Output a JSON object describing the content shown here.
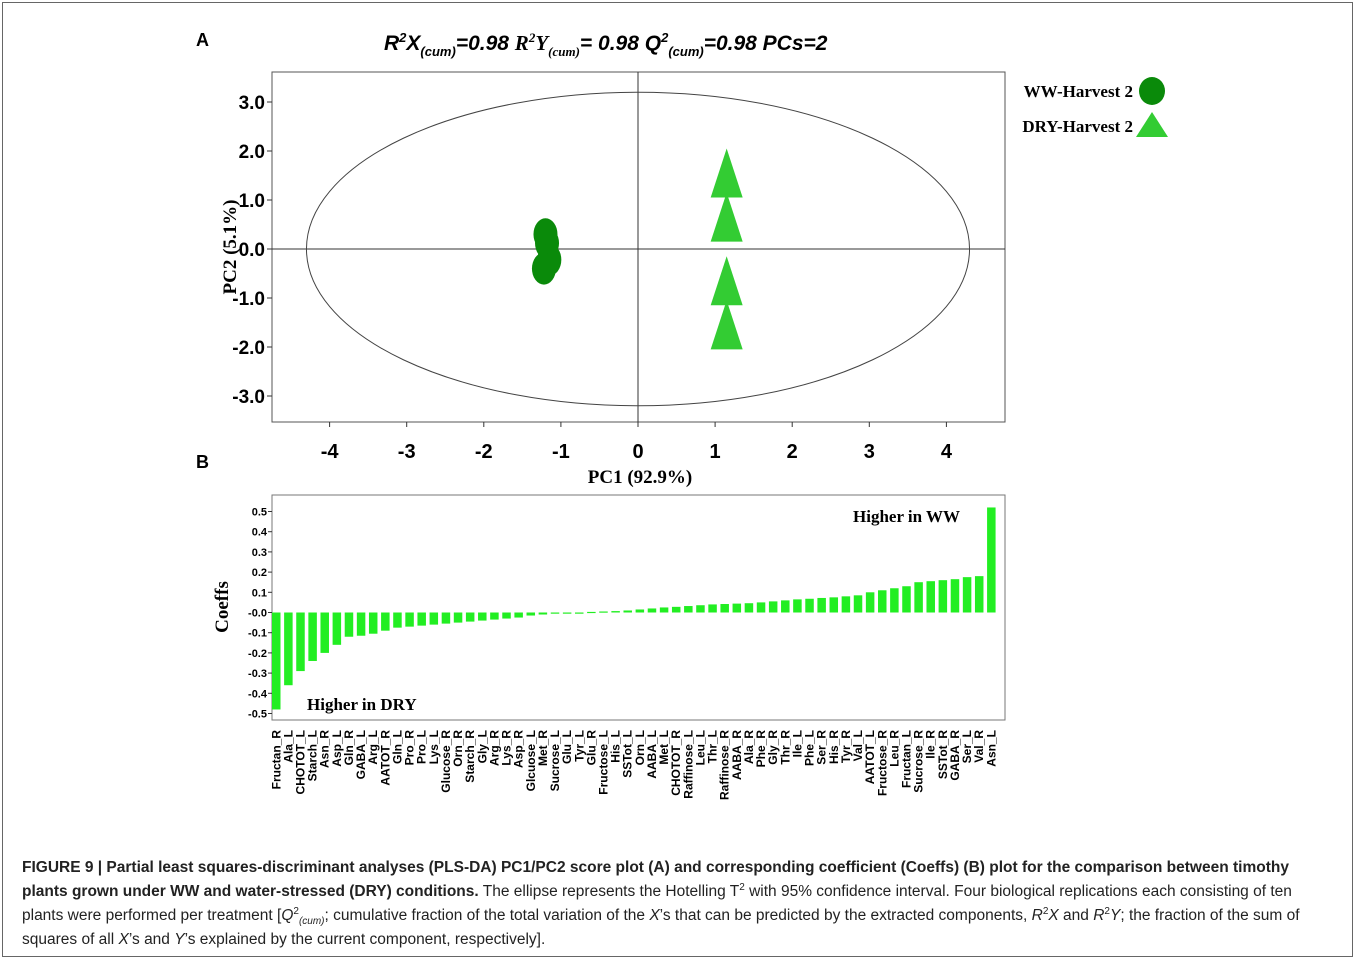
{
  "figure": {
    "panel_a_letter": "A",
    "panel_b_letter": "B",
    "stats_title": {
      "r2x_prefix": "R",
      "r2x_mid": "X",
      "r2x_sub": "(cum)",
      "r2x_value": "=0.98 ",
      "r2y_prefix": "R",
      "r2y_mid": "Y",
      "r2y_sub": "(cum)",
      "r2y_value": "= 0.98 ",
      "q2_prefix": "Q",
      "q2_sub": "(cum)",
      "q2_value": "=0.98 PCs=2",
      "sup": "2"
    },
    "caption": {
      "bold": "FIGURE 9 | Partial least squares-discriminant analyses (PLS-DA) PC1/PC2 score plot (A) and corresponding coefficient (Coeffs) (B) plot for the comparison between timothy plants grown under WW and water-stressed (DRY) conditions.",
      "text1": " The ellipse represents the Hotelling T",
      "text2": " with 95% confidence interval. Four biological replications each consisting of ten plants were performed per treatment [",
      "q": "Q",
      "q_sup": "2",
      "q_sub": "(cum)",
      "text3": "; cumulative fraction of the total variation of the ",
      "x": "X",
      "text4": "’s that can be predicted by the extracted components, ",
      "r": "R",
      "r_sup": "2",
      "text5": " and ",
      "text6": "; the fraction of the sum of squares of all ",
      "text7": "’s and ",
      "y": "Y",
      "text8": "’s explained by the current component, respectively].",
      "t_sup": "2"
    }
  },
  "chart_data": [
    {
      "type": "scatter",
      "xlabel": "PC1 (92.9%)",
      "ylabel": "PC2 (5.1%)",
      "xlim": [
        -4.8,
        4.8
      ],
      "ylim": [
        -3.55,
        3.55
      ],
      "x_ticks": [
        "-4",
        "-3",
        "-2",
        "-1",
        "0",
        "1",
        "2",
        "3",
        "4"
      ],
      "y_ticks": [
        "3.0",
        "2.0",
        "1.0",
        "0.0",
        "-1.0",
        "-2.0",
        "-3.0"
      ],
      "ellipse": {
        "rx": 4.3,
        "ry": 3.2
      },
      "series": [
        {
          "name": "WW-Harvest 2",
          "color": "#0a8a0a",
          "marker": "circle",
          "points": [
            [
              -1.2,
              0.3
            ],
            [
              -1.18,
              0.12
            ],
            [
              -1.15,
              -0.22
            ],
            [
              -1.22,
              -0.4
            ]
          ]
        },
        {
          "name": "DRY-Harvest 2",
          "color": "#33cc33",
          "marker": "triangle",
          "points": [
            [
              1.15,
              1.5
            ],
            [
              1.15,
              0.6
            ],
            [
              1.15,
              -0.7
            ],
            [
              1.15,
              -1.6
            ]
          ]
        }
      ]
    },
    {
      "type": "bar",
      "ylabel": "Coeffs",
      "ylim": [
        -0.53,
        0.53
      ],
      "y_ticks": [
        "0.5",
        "0.4",
        "0.3",
        "0.2",
        "0.1",
        "-0.0",
        "-0.1",
        "-0.2",
        "-0.3",
        "-0.4",
        "-0.5"
      ],
      "color": "#22ee22",
      "annotations": {
        "top": "Higher in WW",
        "bottom": "Higher in DRY"
      },
      "categories": [
        "Fructan_R",
        "Ala_L",
        "CHOTOT_L",
        "Starch_L",
        "Asn_R",
        "Asp_L",
        "Gln_R",
        "GABA_L",
        "Arg_L",
        "AATOT_R",
        "Gln_L",
        "Pro_R",
        "Pro_L",
        "Lys_L",
        "Glucose_R",
        "Orn_R",
        "Starch_R",
        "Gly_L",
        "Arg_R",
        "Lys_R",
        "Asp_R",
        "Glcuose_L",
        "Met_R",
        "Sucrose_L",
        "Glu_L",
        "Tyr_L",
        "Glu_R",
        "Fructose_L",
        "His_L",
        "SSTot_L",
        "Orn_L",
        "AABA_L",
        "Met_L",
        "CHOTOT_R",
        "Raffinose_L",
        "Leu_L",
        "Thr_L",
        "Raffinose_R",
        "AABA_R",
        "Ala_R",
        "Phe_R",
        "Gly_R",
        "Thr_R",
        "Ile_L",
        "Phe_L",
        "Ser_R",
        "His_R",
        "Tyr_R",
        "Val_L",
        "AATOT_L",
        "Fructose_R",
        "Leu_R",
        "Fructan_L",
        "Sucrose_R",
        "Ile_R",
        "SSTot_R",
        "GABA_R",
        "Ser_L",
        "Val_R",
        "Asn_L"
      ],
      "values": [
        -0.48,
        -0.36,
        -0.29,
        -0.24,
        -0.2,
        -0.16,
        -0.12,
        -0.115,
        -0.105,
        -0.09,
        -0.075,
        -0.07,
        -0.065,
        -0.06,
        -0.055,
        -0.05,
        -0.045,
        -0.04,
        -0.035,
        -0.03,
        -0.025,
        -0.015,
        -0.01,
        -0.005,
        -0.003,
        -0.002,
        0.003,
        0.005,
        0.007,
        0.01,
        0.015,
        0.02,
        0.025,
        0.028,
        0.032,
        0.036,
        0.04,
        0.042,
        0.044,
        0.046,
        0.05,
        0.055,
        0.06,
        0.065,
        0.068,
        0.072,
        0.075,
        0.08,
        0.085,
        0.1,
        0.11,
        0.12,
        0.13,
        0.15,
        0.155,
        0.16,
        0.165,
        0.175,
        0.18,
        0.52
      ]
    }
  ]
}
